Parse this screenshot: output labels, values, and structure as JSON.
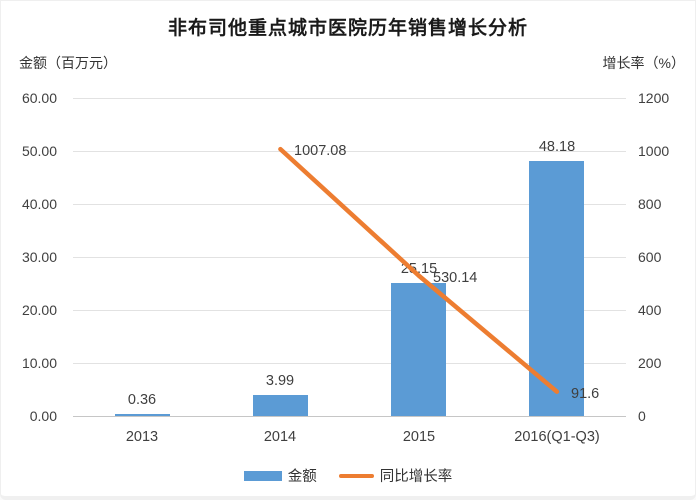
{
  "chart_data": {
    "type": "combo-bar-line",
    "title": "非布司他重点城市医院历年销售增长分析",
    "categories": [
      "2013",
      "2014",
      "2015",
      "2016(Q1-Q3)"
    ],
    "series": [
      {
        "name": "金额",
        "type": "bar",
        "axis": "left",
        "color": "#5B9BD5",
        "values": [
          0.36,
          3.99,
          25.15,
          48.18
        ],
        "labels": [
          "0.36",
          "3.99",
          "25.15",
          "48.18"
        ]
      },
      {
        "name": "同比增长率",
        "type": "line",
        "axis": "right",
        "color": "#ED7D31",
        "values": [
          null,
          1007.08,
          530.14,
          91.6
        ],
        "labels": [
          null,
          "1007.08",
          "530.14",
          "91.6"
        ]
      }
    ],
    "left_axis": {
      "title": "金额（百万元）",
      "min": 0,
      "max": 60,
      "ticks": [
        "60.00",
        "50.00",
        "40.00",
        "30.00",
        "20.00",
        "10.00",
        "0.00"
      ]
    },
    "right_axis": {
      "title": "增长率（%）",
      "min": 0,
      "max": 1200,
      "ticks": [
        "1200",
        "1000",
        "800",
        "600",
        "400",
        "200",
        "0"
      ]
    },
    "legend": {
      "position": "bottom",
      "entries": [
        "金额",
        "同比增长率"
      ]
    },
    "grid": true
  }
}
